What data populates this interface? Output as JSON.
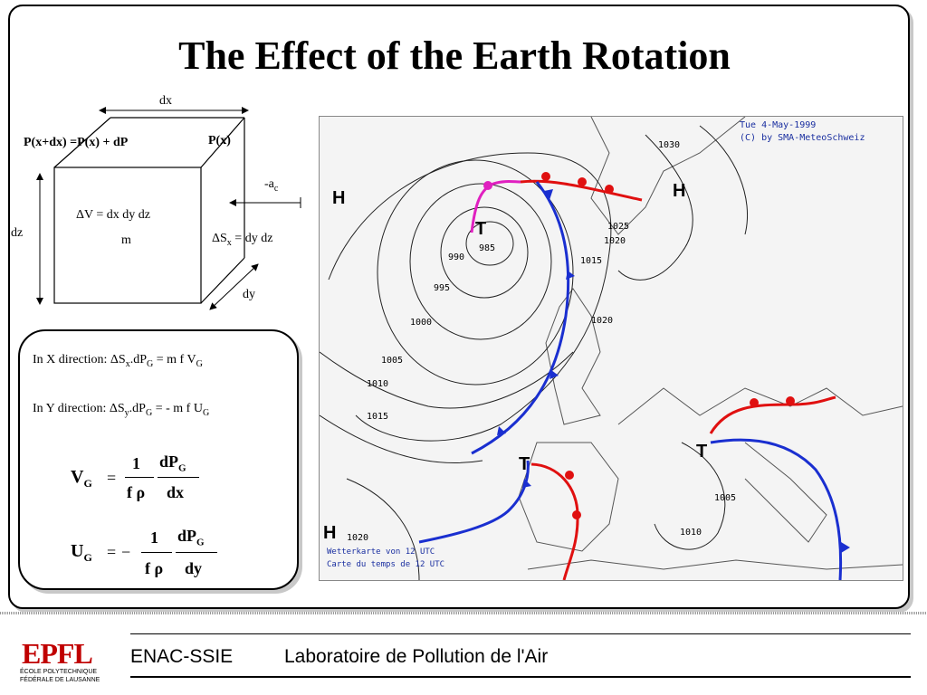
{
  "slide": {
    "title": "The Effect of the Earth Rotation"
  },
  "diagram": {
    "dx_label": "dx",
    "dy_label": "dy",
    "dz_label": "dz",
    "p_left_label": "P(x+dx) =P(x) + dP",
    "p_right_label": "P(x)",
    "ac_label": "-a",
    "ac_sub": "c",
    "volume_label": "ΔV = dx dy dz",
    "mass_label": "m",
    "area_label_pre": "ΔS",
    "area_label_sub": "x",
    "area_label_post": " = dy dz"
  },
  "equations": {
    "x_dir_pre": "In X direction: ΔS",
    "x_dir_sub1": "x",
    "x_dir_mid": ".dP",
    "x_dir_sub2": "G",
    "x_dir_post": " =  m f V",
    "x_dir_sub3": "G",
    "y_dir_pre": "In Y direction: ΔS",
    "y_dir_sub1": "y",
    "y_dir_mid": ".dP",
    "y_dir_sub2": "G",
    "y_dir_post": " = - m f U",
    "y_dir_sub3": "G",
    "vg_lhs": "V",
    "vg_lhs_sub": "G",
    "eq_sign": "=",
    "minus_sign": "−",
    "one": "1",
    "f_rho": "f ρ",
    "dpg": "dP",
    "dpg_sub": "G",
    "dx": "dx",
    "dy": "dy",
    "ug_lhs": "U",
    "ug_lhs_sub": "G"
  },
  "map": {
    "stamp_line1": "Tue 4-May-1999",
    "stamp_line2": "(C) by SMA-MeteoSchweiz",
    "caption_line1": "Wetterkarte von 12 UTC",
    "caption_line2": "Carte du temps de 12 UTC",
    "high_labels": [
      "H",
      "H",
      "H"
    ],
    "low_labels": [
      "T",
      "T",
      "T"
    ],
    "isobar_labels": [
      "985",
      "990",
      "995",
      "1000",
      "1005",
      "1010",
      "1015",
      "1020",
      "1025",
      "1030",
      "1015",
      "1005",
      "1010",
      "1020",
      "1020"
    ]
  },
  "footer": {
    "logo_text": "EPFL",
    "logo_sub1": "ÉCOLE POLYTECHNIQUE",
    "logo_sub2": "FÉDÉRALE DE LAUSANNE",
    "dept": "ENAC-SSIE",
    "lab": "Laboratoire de Pollution de l'Air"
  },
  "colors": {
    "cold_front": "#1a2fd0",
    "warm_front": "#e01010",
    "occluded_front": "#e020c0",
    "map_text": "#1a2fa0"
  }
}
